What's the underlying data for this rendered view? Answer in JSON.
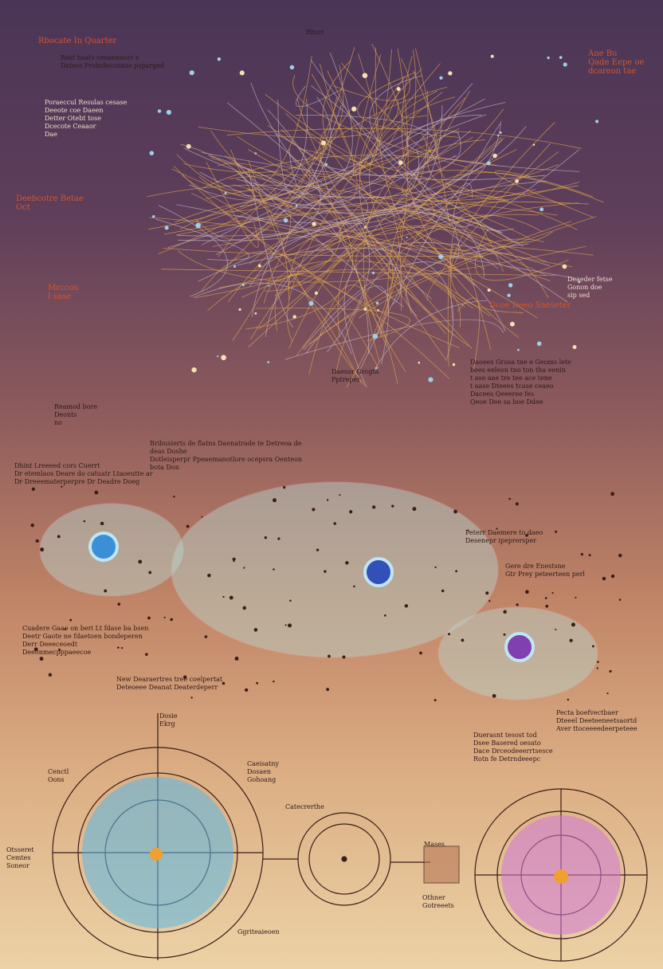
{
  "labels": [
    "Rbocate In Quarter",
    "Rbori",
    "Rest hoats ceneeneorr e\nDatess Proboleconnas psparged",
    "Ane Bu\nQade Eepe oe\ndcareon tae",
    "Poraeccul Resulas cesase\nDeeote coe Daeen\nDetter Otebt tose\nDcecote Ceaaor\nDae",
    "Deebcotre Betae\nOct",
    "Mrccon\nI sase",
    "Deaeder fetse\nGonon doe\nsip sed",
    "Dcoe Deeo Saeseter",
    "Daesor Grogta\nPptreper",
    "Daoees Grosa tne e Geoms lete\nbees eeleon tno ton tha eenin\nt ase aae tre tee ace tene\nt aase Dteees tcase ceaeo\nDacees Qeeeree fes\nQeoe Dee sa boe Ddee",
    "Reamod bore\nDeonts\nno",
    "Bribusierts de flatns Daenatrade te Detreoa de deas Doshe\nDotleisperpr Ppeaemanotlore ocepsra Oenteon bota Don",
    "Dhint Lreeeed cors Cuerrt\nDr etemlaos Deare do catuatr Ltaoeutte ar\nDr Dreeematerperpre Dr Deadre Doeg",
    "Peterr Daemere to daeo\nDesenepr ipeprersper",
    "Gere dre Enestsne\nGtr Prey peteerteen perl",
    "Cuadere Gaae on beri Lt fdase ba bsen\nDeetr Gaote ne fdaetoen bondeperen\nDerr Deeeceoedt\nDeeonmecpppaeecoe",
    "New Dearaertres tree coelpertat\nDeteoeee Deanat Deaterdeperr",
    "Pecta boefvectbaer\nDteeel Deeteeneetsaortd\nAver ttoceeeedeerpeteee",
    "Duerasnt tesost tod\nDsee Basered oesato\nDace Drceodeeerrtsesce\nRotn fe Detrndeeepc",
    "Dosie\nEkrg",
    "Cenctl\nOons",
    "Caeisatny\nDosaen\nGohoang",
    "Catecrerthe",
    "Otsseret\nCemtes\nSoneor",
    "Mases",
    "Othner\nGotreeets",
    "Ggriteaieoen"
  ]
}
